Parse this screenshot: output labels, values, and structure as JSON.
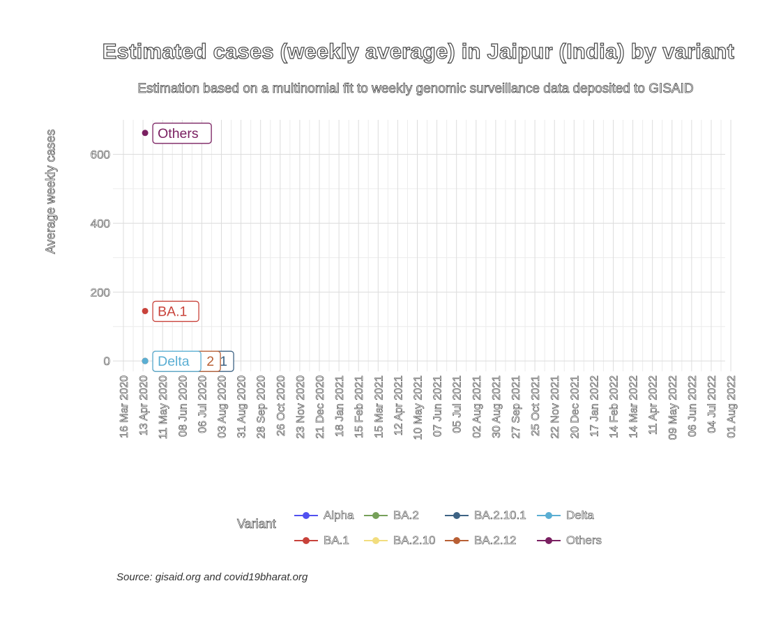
{
  "chart_data": {
    "type": "line",
    "title": "Estimated cases (weekly average) in Jaipur (India) by variant",
    "subtitle": "Estimation based on a multinomial fit to weekly genomic surveillance data deposited to GISAID",
    "ylabel": "Average weekly cases",
    "xlabel": "",
    "caption": "Source: gisaid.org and covid19bharat.org",
    "ylim": [
      -30,
      700
    ],
    "yticks": [
      0,
      200,
      400,
      600
    ],
    "grid": true,
    "legend": {
      "title": "Variant",
      "position": "bottom"
    },
    "x_tick_labels": [
      "16 Mar 2020",
      "13 Apr 2020",
      "11 May 2020",
      "08 Jun 2020",
      "06 Jul 2020",
      "03 Aug 2020",
      "31 Aug 2020",
      "28 Sep 2020",
      "26 Oct 2020",
      "23 Nov 2020",
      "21 Dec 2020",
      "18 Jan 2021",
      "15 Feb 2021",
      "15 Mar 2021",
      "12 Apr 2021",
      "10 May 2021",
      "07 Jun 2021",
      "05 Jul 2021",
      "02 Aug 2021",
      "30 Aug 2021",
      "27 Sep 2021",
      "25 Oct 2021",
      "22 Nov 2021",
      "20 Dec 2021",
      "17 Jan 2022",
      "14 Feb 2022",
      "14 Mar 2022",
      "11 Apr 2022",
      "09 May 2022",
      "06 Jun 2022",
      "04 Jul 2022",
      "01 Aug 2022"
    ],
    "series": [
      {
        "name": "Alpha",
        "color": "#5050f0",
        "points": [
          {
            "x": "2020-04-16",
            "y": 0
          }
        ]
      },
      {
        "name": "BA.1",
        "color": "#c8423a",
        "label": "BA.1",
        "points": [
          {
            "x": "2020-04-16",
            "y": 145
          }
        ]
      },
      {
        "name": "BA.2",
        "color": "#76a059",
        "points": [
          {
            "x": "2020-04-16",
            "y": 0
          }
        ]
      },
      {
        "name": "BA.2.10",
        "color": "#f2dd7e",
        "points": [
          {
            "x": "2020-04-16",
            "y": 0
          }
        ]
      },
      {
        "name": "BA.2.10.1",
        "color": "#3d6384",
        "label": "1",
        "points": [
          {
            "x": "2020-04-16",
            "y": 0
          }
        ]
      },
      {
        "name": "BA.2.12",
        "color": "#b85f34",
        "label": "2",
        "points": [
          {
            "x": "2020-04-16",
            "y": 0
          }
        ]
      },
      {
        "name": "Delta",
        "color": "#5aaed3",
        "label": "Delta",
        "points": [
          {
            "x": "2020-04-16",
            "y": 0
          }
        ]
      },
      {
        "name": "Others",
        "color": "#7a2061",
        "label": "Others",
        "points": [
          {
            "x": "2020-04-16",
            "y": 662
          }
        ]
      }
    ]
  }
}
